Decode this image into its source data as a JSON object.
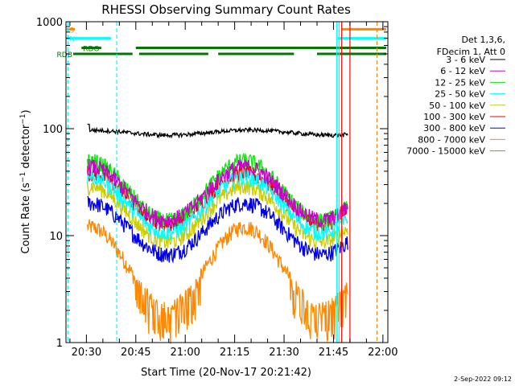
{
  "chart_data": {
    "type": "line",
    "title": "RHESSI Observing Summary Count Rates",
    "xlabel": "Start Time (20-Nov-17 20:21:42)",
    "ylabel": "Count Rate (s⁻¹ detector⁻¹)",
    "ylabel_main": "Count Rate (s",
    "ylabel_sup1": "−1",
    "ylabel_mid": " detector",
    "ylabel_sup2": "−1",
    "ylabel_end": ")",
    "yscale": "log",
    "ylim": [
      1,
      1000
    ],
    "xlim_minutes": [
      23.8,
      121.5
    ],
    "yticks": [
      {
        "v": 1,
        "label": "1"
      },
      {
        "v": 10,
        "label": "10"
      },
      {
        "v": 100,
        "label": "100"
      },
      {
        "v": 1000,
        "label": "1000"
      }
    ],
    "xticks": [
      {
        "m": 30,
        "label": "20:30"
      },
      {
        "m": 45,
        "label": "20:45"
      },
      {
        "m": 60,
        "label": "21:00"
      },
      {
        "m": 75,
        "label": "21:15"
      },
      {
        "m": 90,
        "label": "21:30"
      },
      {
        "m": 105,
        "label": "21:45"
      },
      {
        "m": 120,
        "label": "22:00"
      }
    ],
    "legend_header": [
      "Det 1,3,6,",
      "FDecim 1, Att 0"
    ],
    "series": [
      {
        "name": "3 - 6 keV",
        "color": "#000000",
        "base": 100,
        "amp": 0.05
      },
      {
        "name": "6 - 12 keV",
        "color": "#cc00cc",
        "base": 28,
        "amp": 0.25
      },
      {
        "name": "12 - 25 keV",
        "color": "#00ee00",
        "base": 30,
        "amp": 0.28
      },
      {
        "name": "25 - 50 keV",
        "color": "#00ffff",
        "base": 22,
        "amp": 0.26
      },
      {
        "name": "50 - 100 keV",
        "color": "#cccc00",
        "base": 18,
        "amp": 0.26
      },
      {
        "name": "100 - 300 keV",
        "color": "#ee0000",
        "base": 25,
        "amp": 0.24
      },
      {
        "name": "300 - 800 keV",
        "color": "#0000ee",
        "base": 13,
        "amp": 0.24
      },
      {
        "name": "800 - 7000 keV",
        "color": "#ff8800",
        "base": 6,
        "amp": 0.38
      },
      {
        "name": "7000 - 15000 keV",
        "color": "#aa8800",
        "base": 0,
        "amp": 0
      }
    ],
    "flags": [
      {
        "label": "S",
        "color": "#ff8800",
        "value": 850,
        "segments": [
          [
            24,
            26.5
          ],
          [
            107.5,
            121
          ]
        ]
      },
      {
        "label": "N",
        "color": "#00ffff",
        "value": 700,
        "segments": [
          [
            24,
            37.5
          ],
          [
            106.3,
            121
          ]
        ]
      },
      {
        "label": "RDO",
        "color": "#007700",
        "value": 570,
        "segments": [
          [
            28.5,
            34.5
          ],
          [
            45,
            121
          ]
        ]
      },
      {
        "label": "RDB",
        "color": "#007700",
        "value": 500,
        "segments": [
          [
            26,
            44
          ],
          [
            46,
            67
          ],
          [
            70,
            93
          ],
          [
            100,
            121
          ]
        ]
      }
    ],
    "vlines": [
      {
        "m": 24.4,
        "color": "#00ffff",
        "dashed": true
      },
      {
        "m": 39.2,
        "color": "#00ffff",
        "dashed": true
      },
      {
        "m": 106.0,
        "color": "#00ffff",
        "dashed": false
      },
      {
        "m": 106.7,
        "color": "#00ffff",
        "dashed": false
      },
      {
        "m": 107.5,
        "color": "#ff0000",
        "dashed": false
      },
      {
        "m": 110.0,
        "color": "#ff0000",
        "dashed": false
      },
      {
        "m": 118.2,
        "color": "#ff8800",
        "dashed": true
      }
    ]
  },
  "footer_date": "2-Sep-2022 09:12"
}
